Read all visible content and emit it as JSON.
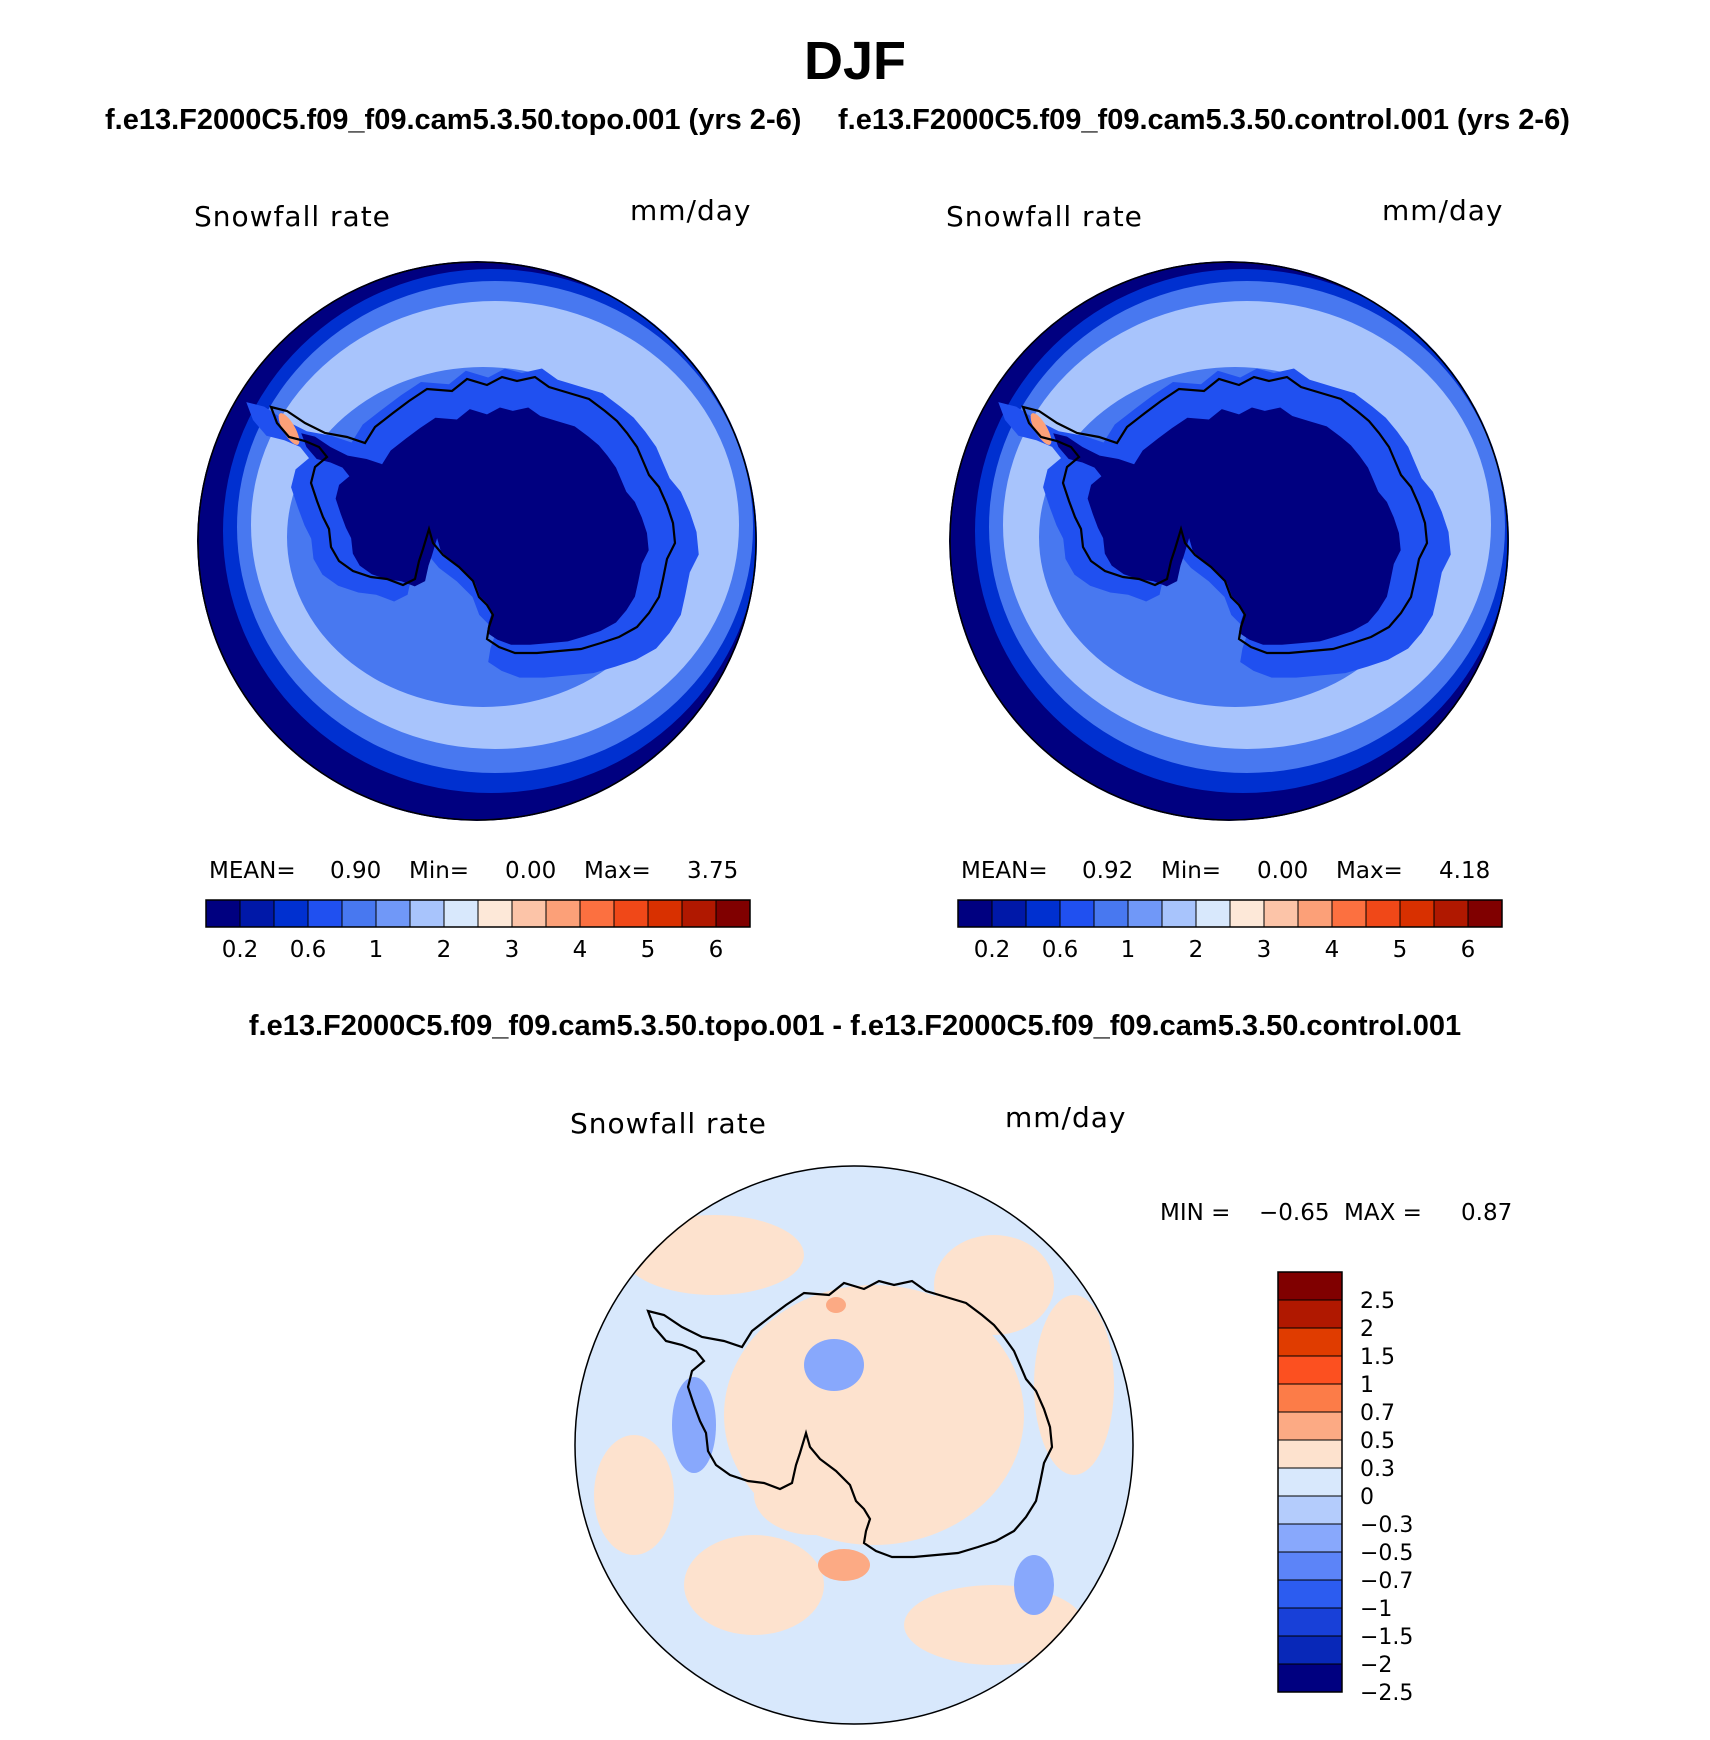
{
  "title": "DJF",
  "panels": [
    {
      "case_title": "f.e13.F2000C5.f09_f09.cam5.3.50.topo.001 (yrs 2-6)",
      "variable": "Snowfall rate",
      "units": "mm/day",
      "mean_label": "MEAN=",
      "mean": "0.90",
      "min_label": "Min=",
      "min": "0.00",
      "max_label": "Max=",
      "max": "3.75"
    },
    {
      "case_title": "f.e13.F2000C5.f09_f09.cam5.3.50.control.001 (yrs 2-6)",
      "variable": "Snowfall rate",
      "units": "mm/day",
      "mean_label": "MEAN=",
      "mean": "0.92",
      "min_label": "Min=",
      "min": "0.00",
      "max_label": "Max=",
      "max": "4.18"
    }
  ],
  "difference": {
    "title": "f.e13.F2000C5.f09_f09.cam5.3.50.topo.001 - f.e13.F2000C5.f09_f09.cam5.3.50.control.001",
    "variable": "Snowfall rate",
    "units": "mm/day",
    "min_label": "MIN =",
    "min": "−0.65",
    "max_label": "MAX =",
    "max": "0.87"
  },
  "colorbar_abs": {
    "colors": [
      "#000080",
      "#0018a8",
      "#0030d0",
      "#2050f0",
      "#4878f0",
      "#7098f8",
      "#a8c4fc",
      "#d8e8fc",
      "#fde8d8",
      "#fcc4a8",
      "#fca078",
      "#fc7040",
      "#f04818",
      "#d83000",
      "#b01800",
      "#800000"
    ],
    "tick_labels": [
      "0.2",
      "0.6",
      "1",
      "2",
      "3",
      "4",
      "5",
      "6"
    ]
  },
  "colorbar_diff": {
    "colors": [
      "#800000",
      "#b01800",
      "#e03c00",
      "#fc5020",
      "#fc7c48",
      "#fcaa84",
      "#fde2ce",
      "#d8e8fc",
      "#b4ccfc",
      "#88a8fc",
      "#5c84f8",
      "#2c5cf0",
      "#1840d8",
      "#0828b8",
      "#000080"
    ],
    "tick_labels": [
      "2.5",
      "2",
      "1.5",
      "1",
      "0.7",
      "0.5",
      "0.3",
      "0",
      "−0.3",
      "−0.5",
      "−0.7",
      "−1",
      "−1.5",
      "−2",
      "−2.5"
    ]
  },
  "map_colors": {
    "ocean_edge": "#000080",
    "ring_dark": "#0030d0",
    "ring_mid": "#4878f0",
    "ring_light": "#a8c4fc",
    "ice_margin": "#2050f0",
    "interior": "#000080",
    "peninsula": "#fca078",
    "diff_neg": "#d8e8fc",
    "diff_pos": "#fde2ce",
    "diff_pos2": "#fcaa84",
    "diff_neg2": "#88a8fc",
    "coast": "#000000"
  }
}
